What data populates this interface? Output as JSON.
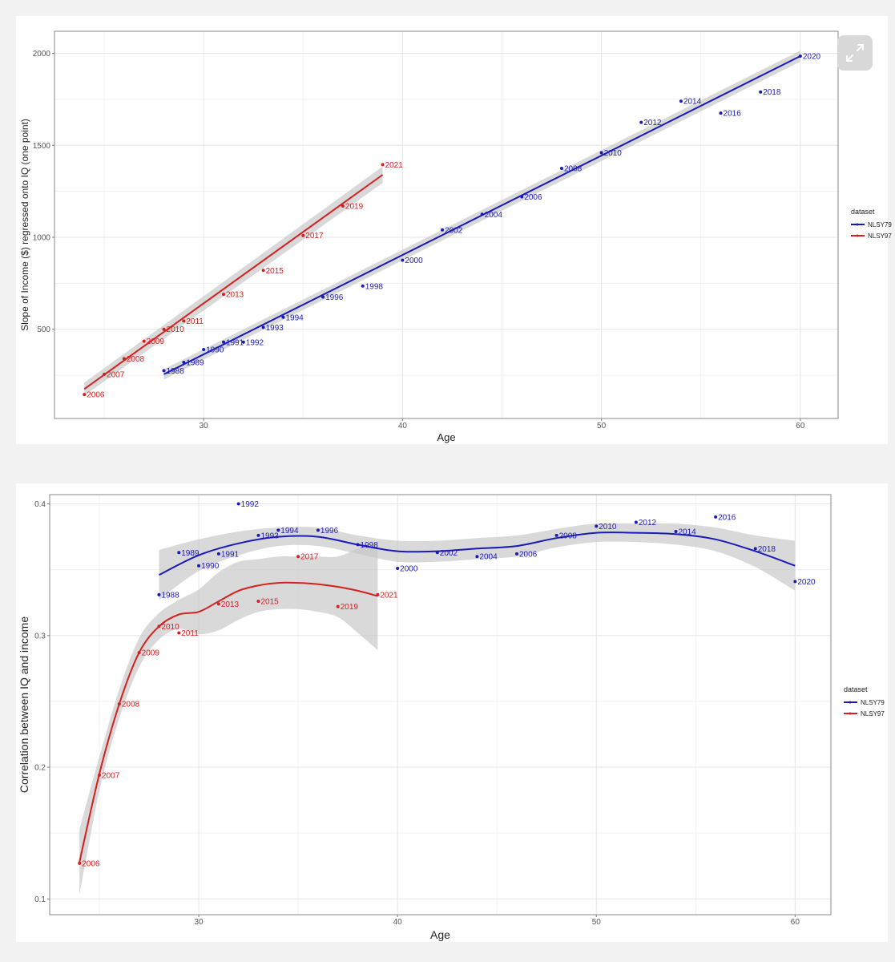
{
  "chart_data": [
    {
      "type": "scatter",
      "title": "",
      "xlabel": "Age",
      "ylabel": "Slope of Income ($) regressed onto IQ (one point)",
      "xlim": [
        22.5,
        61.9
      ],
      "ylim": [
        15,
        2120
      ],
      "xticks": [
        30,
        40,
        50,
        60
      ],
      "yticks": [
        500,
        1000,
        1500,
        2000
      ],
      "grid": true,
      "legend": {
        "title": "dataset",
        "entries": [
          "NLSY79",
          "NLSY97"
        ],
        "position": "right"
      },
      "series": [
        {
          "name": "NLSY79",
          "color": "#1a1ab8",
          "points": [
            {
              "x": 28,
              "y": 275,
              "label": "1988"
            },
            {
              "x": 29,
              "y": 320,
              "label": "1989"
            },
            {
              "x": 30,
              "y": 390,
              "label": "1990"
            },
            {
              "x": 31,
              "y": 430,
              "label": "1991"
            },
            {
              "x": 32,
              "y": 430,
              "label": "1992"
            },
            {
              "x": 33,
              "y": 510,
              "label": "1993"
            },
            {
              "x": 34,
              "y": 565,
              "label": "1994"
            },
            {
              "x": 36,
              "y": 675,
              "label": "1996"
            },
            {
              "x": 38,
              "y": 735,
              "label": "1998"
            },
            {
              "x": 40,
              "y": 875,
              "label": "2000"
            },
            {
              "x": 42,
              "y": 1040,
              "label": "2002"
            },
            {
              "x": 44,
              "y": 1125,
              "label": "2004"
            },
            {
              "x": 46,
              "y": 1220,
              "label": "2006"
            },
            {
              "x": 48,
              "y": 1375,
              "label": "2008"
            },
            {
              "x": 50,
              "y": 1460,
              "label": "2010"
            },
            {
              "x": 52,
              "y": 1625,
              "label": "2012"
            },
            {
              "x": 54,
              "y": 1740,
              "label": "2014"
            },
            {
              "x": 56,
              "y": 1675,
              "label": "2016"
            },
            {
              "x": 58,
              "y": 1790,
              "label": "2018"
            },
            {
              "x": 60,
              "y": 1985,
              "label": "2020"
            }
          ],
          "fit": {
            "method": "lm",
            "x": [
              28,
              60
            ],
            "y": [
              255,
              1985
            ],
            "ci_halfwidth": [
              28,
              30
            ]
          }
        },
        {
          "name": "NLSY97",
          "color": "#d42020",
          "points": [
            {
              "x": 24,
              "y": 145,
              "label": "2006"
            },
            {
              "x": 25,
              "y": 255,
              "label": "2007"
            },
            {
              "x": 26,
              "y": 340,
              "label": "2008"
            },
            {
              "x": 27,
              "y": 435,
              "label": "2009"
            },
            {
              "x": 28,
              "y": 500,
              "label": "2010"
            },
            {
              "x": 29,
              "y": 545,
              "label": "2011"
            },
            {
              "x": 31,
              "y": 690,
              "label": "2013"
            },
            {
              "x": 33,
              "y": 820,
              "label": "2015"
            },
            {
              "x": 35,
              "y": 1010,
              "label": "2017"
            },
            {
              "x": 37,
              "y": 1170,
              "label": "2019"
            },
            {
              "x": 39,
              "y": 1395,
              "label": "2021"
            }
          ],
          "fit": {
            "method": "lm",
            "x": [
              24,
              39
            ],
            "y": [
              175,
              1340
            ],
            "ci_halfwidth": [
              35,
              45
            ]
          }
        }
      ]
    },
    {
      "type": "scatter",
      "title": "",
      "xlabel": "Age",
      "ylabel": "Correlation between IQ and income",
      "xlim": [
        22.5,
        61.8
      ],
      "ylim": [
        0.088,
        0.407
      ],
      "xticks": [
        30,
        40,
        50,
        60
      ],
      "yticks": [
        0.1,
        0.2,
        0.3,
        0.4
      ],
      "ytick_labels": [
        "0.1",
        "0.2",
        "0.3",
        "0.4"
      ],
      "grid": true,
      "legend": {
        "title": "dataset",
        "entries": [
          "NLSY79",
          "NLSY97"
        ],
        "position": "right"
      },
      "series": [
        {
          "name": "NLSY79",
          "color": "#1a1ab8",
          "points": [
            {
              "x": 28,
              "y": 0.331,
              "label": "1988"
            },
            {
              "x": 29,
              "y": 0.363,
              "label": "1989"
            },
            {
              "x": 30,
              "y": 0.353,
              "label": "1990"
            },
            {
              "x": 31,
              "y": 0.362,
              "label": "1991"
            },
            {
              "x": 32,
              "y": 0.4,
              "label": "1992"
            },
            {
              "x": 33,
              "y": 0.376,
              "label": "1993"
            },
            {
              "x": 34,
              "y": 0.38,
              "label": "1994"
            },
            {
              "x": 36,
              "y": 0.38,
              "label": "1996"
            },
            {
              "x": 38,
              "y": 0.369,
              "label": "1998"
            },
            {
              "x": 40,
              "y": 0.351,
              "label": "2000"
            },
            {
              "x": 42,
              "y": 0.363,
              "label": "2002"
            },
            {
              "x": 44,
              "y": 0.36,
              "label": "2004"
            },
            {
              "x": 46,
              "y": 0.362,
              "label": "2006"
            },
            {
              "x": 48,
              "y": 0.376,
              "label": "2008"
            },
            {
              "x": 50,
              "y": 0.383,
              "label": "2010"
            },
            {
              "x": 52,
              "y": 0.386,
              "label": "2012"
            },
            {
              "x": 54,
              "y": 0.379,
              "label": "2014"
            },
            {
              "x": 56,
              "y": 0.39,
              "label": "2016"
            },
            {
              "x": 58,
              "y": 0.366,
              "label": "2018"
            },
            {
              "x": 60,
              "y": 0.341,
              "label": "2020"
            }
          ],
          "fit": {
            "method": "loess",
            "x": [
              28,
              30,
              32,
              34,
              36,
              38,
              40,
              42,
              44,
              46,
              48,
              50,
              52,
              54,
              56,
              58,
              60
            ],
            "y": [
              0.346,
              0.361,
              0.37,
              0.375,
              0.375,
              0.369,
              0.364,
              0.364,
              0.366,
              0.368,
              0.374,
              0.378,
              0.378,
              0.377,
              0.373,
              0.364,
              0.353
            ],
            "ci_halfwidth": [
              0.019,
              0.012,
              0.009,
              0.007,
              0.007,
              0.007,
              0.008,
              0.008,
              0.008,
              0.008,
              0.007,
              0.007,
              0.007,
              0.008,
              0.009,
              0.012,
              0.019
            ]
          }
        },
        {
          "name": "NLSY97",
          "color": "#d42020",
          "points": [
            {
              "x": 24,
              "y": 0.127,
              "label": "2006"
            },
            {
              "x": 25,
              "y": 0.194,
              "label": "2007"
            },
            {
              "x": 26,
              "y": 0.248,
              "label": "2008"
            },
            {
              "x": 27,
              "y": 0.287,
              "label": "2009"
            },
            {
              "x": 28,
              "y": 0.307,
              "label": "2010"
            },
            {
              "x": 29,
              "y": 0.302,
              "label": "2011"
            },
            {
              "x": 31,
              "y": 0.324,
              "label": "2013"
            },
            {
              "x": 33,
              "y": 0.326,
              "label": "2015"
            },
            {
              "x": 35,
              "y": 0.36,
              "label": "2017"
            },
            {
              "x": 37,
              "y": 0.322,
              "label": "2019"
            },
            {
              "x": 39,
              "y": 0.331,
              "label": "2021"
            }
          ],
          "fit": {
            "method": "loess",
            "x": [
              24,
              25,
              26,
              27,
              28,
              29,
              30,
              31,
              32,
              33,
              34,
              35,
              36,
              37,
              38,
              39
            ],
            "y": [
              0.128,
              0.195,
              0.248,
              0.287,
              0.307,
              0.316,
              0.318,
              0.326,
              0.334,
              0.338,
              0.34,
              0.34,
              0.339,
              0.337,
              0.334,
              0.33
            ],
            "ci_halfwidth": [
              0.025,
              0.013,
              0.011,
              0.011,
              0.01,
              0.011,
              0.017,
              0.022,
              0.022,
              0.02,
              0.02,
              0.02,
              0.021,
              0.023,
              0.032,
              0.041
            ]
          }
        }
      ]
    }
  ],
  "expand_icon": "expand-icon"
}
